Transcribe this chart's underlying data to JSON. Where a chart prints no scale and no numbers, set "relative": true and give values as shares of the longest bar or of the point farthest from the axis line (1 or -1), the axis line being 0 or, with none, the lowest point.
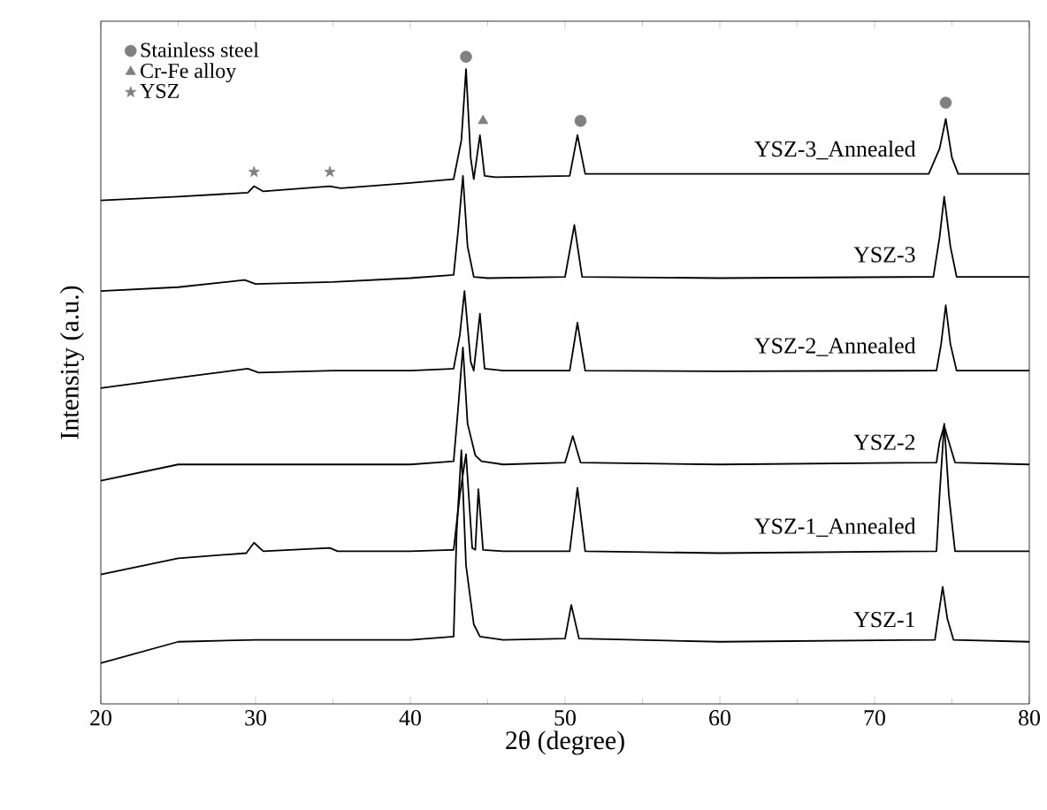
{
  "chart_data": {
    "type": "line",
    "relative": true,
    "xlabel": "2θ (degree)",
    "ylabel": "Intensity (a.u.)",
    "xlim": [
      20,
      80
    ],
    "xticks": [
      20,
      30,
      40,
      50,
      60,
      70,
      80
    ],
    "legend": "top left",
    "series": [
      {
        "name": "YSZ-3_Annealed",
        "color": "#000000",
        "x": [
          20,
          25,
          29.5,
          29.9,
          30.5,
          34.8,
          35.5,
          40,
          42.8,
          43.3,
          43.6,
          43.9,
          44.1,
          44.5,
          44.8,
          45.5,
          50.3,
          50.8,
          51.3,
          55,
          65,
          73.5,
          74.2,
          74.6,
          75.0,
          75.4,
          80
        ],
        "values": [
          0.778,
          0.784,
          0.79,
          0.8,
          0.792,
          0.8,
          0.797,
          0.805,
          0.811,
          0.871,
          0.981,
          0.844,
          0.811,
          0.879,
          0.816,
          0.814,
          0.816,
          0.879,
          0.819,
          0.819,
          0.819,
          0.819,
          0.858,
          0.904,
          0.844,
          0.819,
          0.819
        ]
      },
      {
        "name": "YSZ-3",
        "color": "#000000",
        "x": [
          20,
          25,
          29.3,
          30,
          35,
          40,
          42.8,
          43.1,
          43.4,
          43.7,
          44.1,
          45,
          50.0,
          50.6,
          51.1,
          60,
          73.8,
          74.2,
          74.5,
          74.9,
          75.3,
          80
        ],
        "values": [
          0.638,
          0.644,
          0.655,
          0.649,
          0.652,
          0.658,
          0.663,
          0.734,
          0.816,
          0.707,
          0.66,
          0.658,
          0.66,
          0.74,
          0.66,
          0.658,
          0.66,
          0.721,
          0.784,
          0.707,
          0.66,
          0.66
        ]
      },
      {
        "name": "YSZ-2_Annealed",
        "color": "#000000",
        "x": [
          20,
          25,
          29.5,
          30.2,
          35,
          40,
          42.8,
          43.2,
          43.5,
          43.9,
          44.1,
          44.5,
          44.8,
          46,
          50.3,
          50.8,
          51.3,
          60,
          74.0,
          74.3,
          74.6,
          74.9,
          75.3,
          80
        ],
        "values": [
          0.488,
          0.504,
          0.518,
          0.512,
          0.515,
          0.515,
          0.518,
          0.57,
          0.638,
          0.529,
          0.515,
          0.603,
          0.518,
          0.515,
          0.515,
          0.589,
          0.515,
          0.514,
          0.515,
          0.556,
          0.616,
          0.556,
          0.515,
          0.515
        ]
      },
      {
        "name": "YSZ-2",
        "color": "#000000",
        "x": [
          20,
          25,
          30,
          40,
          42.8,
          43.1,
          43.4,
          43.7,
          44.2,
          44.6,
          46,
          50.0,
          50.5,
          51.0,
          60,
          74.0,
          74.2,
          74.5,
          74.8,
          75.2,
          80
        ],
        "values": [
          0.345,
          0.37,
          0.37,
          0.37,
          0.375,
          0.46,
          0.551,
          0.433,
          0.384,
          0.375,
          0.37,
          0.373,
          0.414,
          0.373,
          0.37,
          0.373,
          0.405,
          0.43,
          0.405,
          0.373,
          0.37
        ]
      },
      {
        "name": "YSZ-1_Annealed",
        "color": "#000000",
        "x": [
          20,
          25,
          29.4,
          29.9,
          30.5,
          34.8,
          35.3,
          40,
          42.8,
          43.2,
          43.6,
          44.0,
          44.2,
          44.4,
          44.7,
          46,
          50.3,
          50.8,
          51.3,
          60,
          74.0,
          74.2,
          74.5,
          74.8,
          75.2,
          80
        ],
        "values": [
          0.2,
          0.225,
          0.233,
          0.249,
          0.236,
          0.241,
          0.236,
          0.236,
          0.238,
          0.323,
          0.386,
          0.241,
          0.238,
          0.332,
          0.238,
          0.236,
          0.236,
          0.334,
          0.236,
          0.233,
          0.236,
          0.323,
          0.433,
          0.323,
          0.236,
          0.236
        ]
      },
      {
        "name": "YSZ-1",
        "color": "#000000",
        "x": [
          20,
          25,
          30,
          40,
          42.8,
          43.0,
          43.3,
          43.6,
          44.1,
          44.5,
          46,
          50.0,
          50.4,
          50.9,
          60,
          73.9,
          74.1,
          74.4,
          74.7,
          75.1,
          80
        ],
        "values": [
          0.063,
          0.096,
          0.099,
          0.099,
          0.104,
          0.268,
          0.392,
          0.214,
          0.123,
          0.104,
          0.099,
          0.101,
          0.153,
          0.101,
          0.096,
          0.099,
          0.132,
          0.181,
          0.132,
          0.099,
          0.096
        ]
      },
      {
        "name": "Stainless steel",
        "type": "scatter",
        "marker": "circle",
        "color": "#808080",
        "x": [
          43.6,
          51.0,
          74.6
        ],
        "values": [
          1.0,
          0.901,
          0.929
        ]
      },
      {
        "name": "Cr-Fe alloy",
        "type": "scatter",
        "marker": "triangle",
        "color": "#808080",
        "x": [
          44.7
        ],
        "values": [
          0.901
        ]
      },
      {
        "name": "YSZ",
        "type": "scatter",
        "marker": "star",
        "color": "#808080",
        "x": [
          29.9,
          34.8
        ],
        "values": [
          0.822,
          0.822
        ]
      }
    ]
  }
}
